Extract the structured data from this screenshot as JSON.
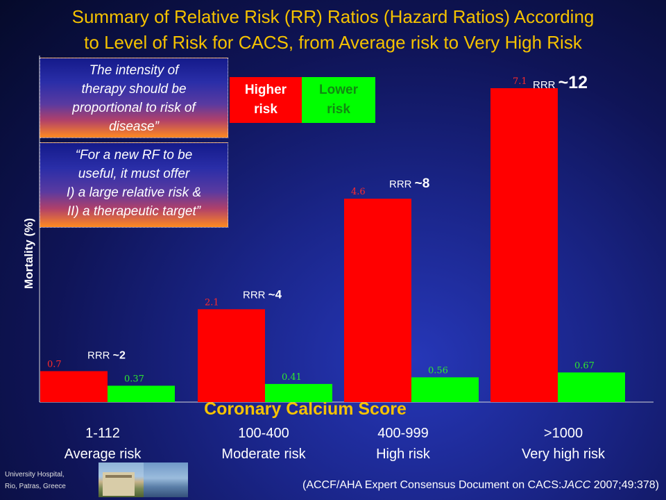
{
  "slide": {
    "title_line1": "Summary of Relative Risk (RR) Ratios (Hazard Ratios) According",
    "title_line2": "to Level of Risk for CACS, from Average risk to Very High Risk",
    "quote1_lines": [
      "The intensity of",
      "therapy should be",
      "proportional to risk of",
      "disease”"
    ],
    "quote2_lines": [
      "“For a new RF to be",
      "useful, it must offer",
      "I) a large relative risk &",
      "II) a therapeutic target”"
    ],
    "legend": {
      "higher": [
        "Higher",
        "risk"
      ],
      "lower": [
        "Lower",
        "risk"
      ]
    },
    "ylabel": "Mortality (%)",
    "xtitle": "Coronary Calcium Score",
    "categories": [
      {
        "score": "1-112",
        "risk": "Average risk"
      },
      {
        "score": "100-400",
        "risk": "Moderate risk"
      },
      {
        "score": "400-999",
        "risk": "High risk"
      },
      {
        "score": ">1000",
        "risk": "Very high risk"
      }
    ],
    "footer_institution": [
      "University Hospital,",
      "Rio, Patras, Greece"
    ],
    "citation_prefix": "(ACCF/AHA Expert Consensus Document on CACS:",
    "citation_journal": "JACC",
    "citation_suffix": " 2007;49:378)"
  },
  "colors": {
    "title": "#f5c200",
    "higher": "#ff0000",
    "lower": "#00ff00",
    "higher_label": "#ff2a2a",
    "lower_label": "#2ee82e"
  },
  "chart_data": {
    "type": "bar",
    "categories": [
      "1-112 Average risk",
      "100-400 Moderate risk",
      "400-999 High risk",
      ">1000 Very high risk"
    ],
    "series": [
      {
        "name": "Higher risk",
        "values": [
          0.7,
          2.1,
          4.6,
          7.1
        ]
      },
      {
        "name": "Lower risk",
        "values": [
          0.37,
          0.41,
          0.56,
          0.67
        ]
      }
    ],
    "data_labels": {
      "higher": [
        "0.7",
        "2.1",
        "4.6",
        "7.1"
      ],
      "lower": [
        "0.37",
        "0.41",
        "0.56",
        "0.67"
      ]
    },
    "annotations": [
      {
        "prefix": "RRR",
        "value": "~2"
      },
      {
        "prefix": "RRR",
        "value": "~4"
      },
      {
        "prefix": "RRR",
        "value": "~8"
      },
      {
        "prefix": "RRR",
        "value": "~12"
      }
    ],
    "ylabel": "Mortality (%)",
    "xlabel": "Coronary Calcium Score",
    "ylim": [
      0,
      7.1
    ],
    "grid": false,
    "legend_position": "top-left"
  }
}
